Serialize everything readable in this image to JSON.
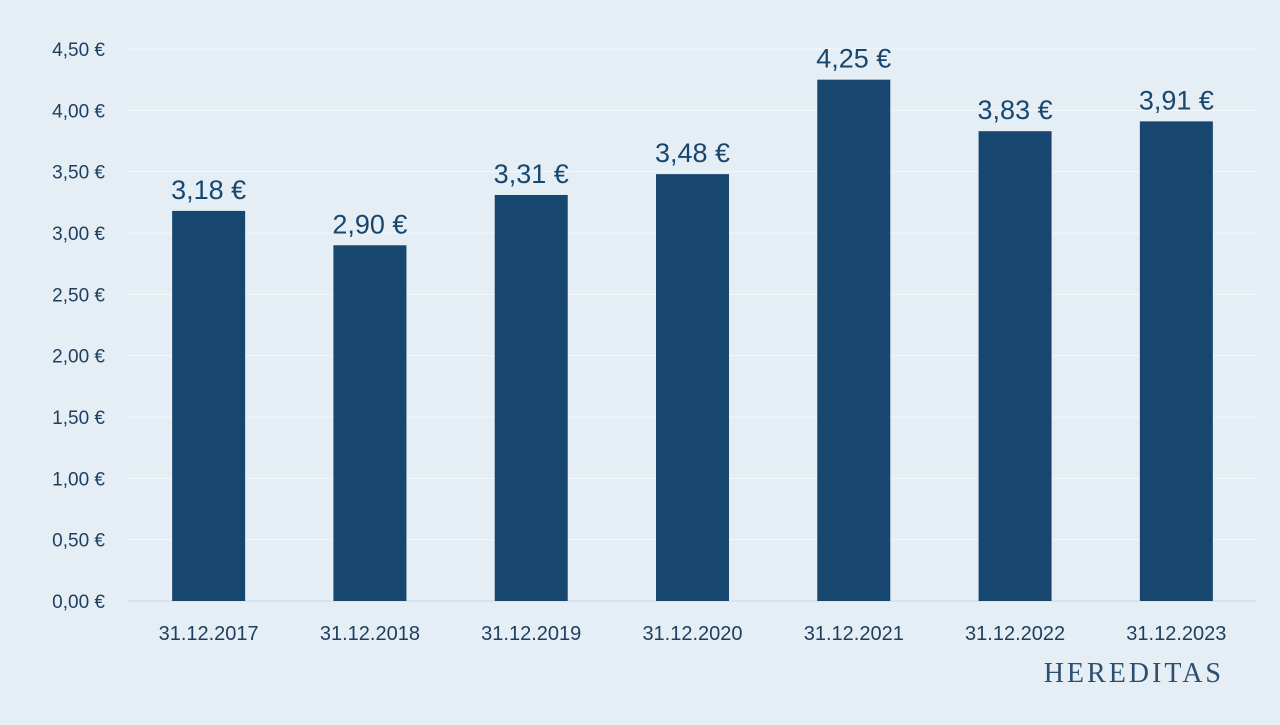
{
  "brand": {
    "name": "HEREDITAS"
  },
  "colors": {
    "background": "#e5eef5",
    "bar": "#17476f",
    "text": "#1f3f60"
  },
  "chart_data": {
    "type": "bar",
    "categories": [
      "31.12.2017",
      "31.12.2018",
      "31.12.2019",
      "31.12.2020",
      "31.12.2021",
      "31.12.2022",
      "31.12.2023"
    ],
    "values": [
      3.18,
      2.9,
      3.31,
      3.48,
      4.25,
      3.83,
      3.91
    ],
    "value_labels": [
      "3,18 €",
      "2,90 €",
      "3,31 €",
      "3,48 €",
      "4,25 €",
      "3,83 €",
      "3,91 €"
    ],
    "y_ticks": [
      0,
      0.5,
      1.0,
      1.5,
      2.0,
      2.5,
      3.0,
      3.5,
      4.0,
      4.5
    ],
    "y_tick_labels": [
      "0,00 €",
      "0,50 €",
      "1,00 €",
      "1,50 €",
      "2,00 €",
      "2,50 €",
      "3,00 €",
      "3,50 €",
      "4,00 €",
      "4,50 €"
    ],
    "ylim": [
      0,
      4.5
    ],
    "grid": true,
    "title": "",
    "xlabel": "",
    "ylabel": ""
  }
}
